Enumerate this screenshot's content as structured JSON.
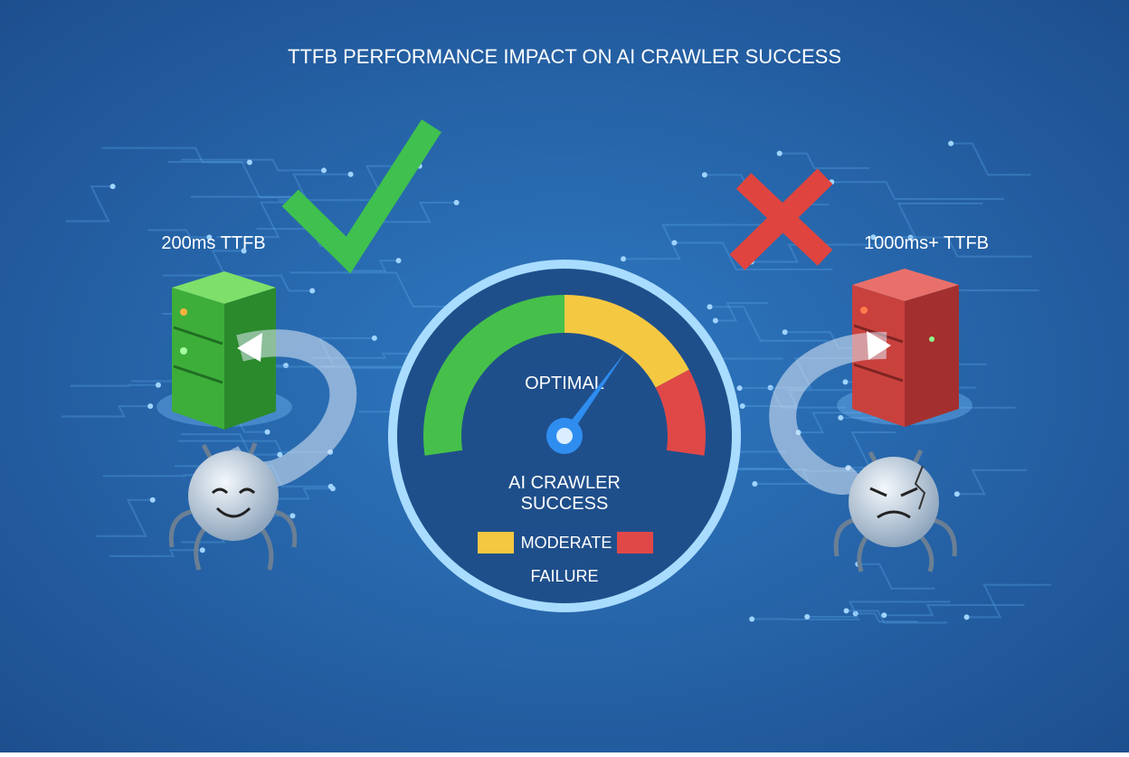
{
  "title": "TTFB PERFORMANCE IMPACT ON AI CRAWLER SUCCESS",
  "left": {
    "label": "200ms TTFB"
  },
  "right": {
    "label": "1000ms+ TTFB"
  },
  "gauge": {
    "zone_label": "OPTIMAL",
    "caption_lines": [
      "AI CRAWLER",
      "SUCCESS"
    ],
    "legend": [
      "MODERATE",
      "FAILURE"
    ]
  }
}
